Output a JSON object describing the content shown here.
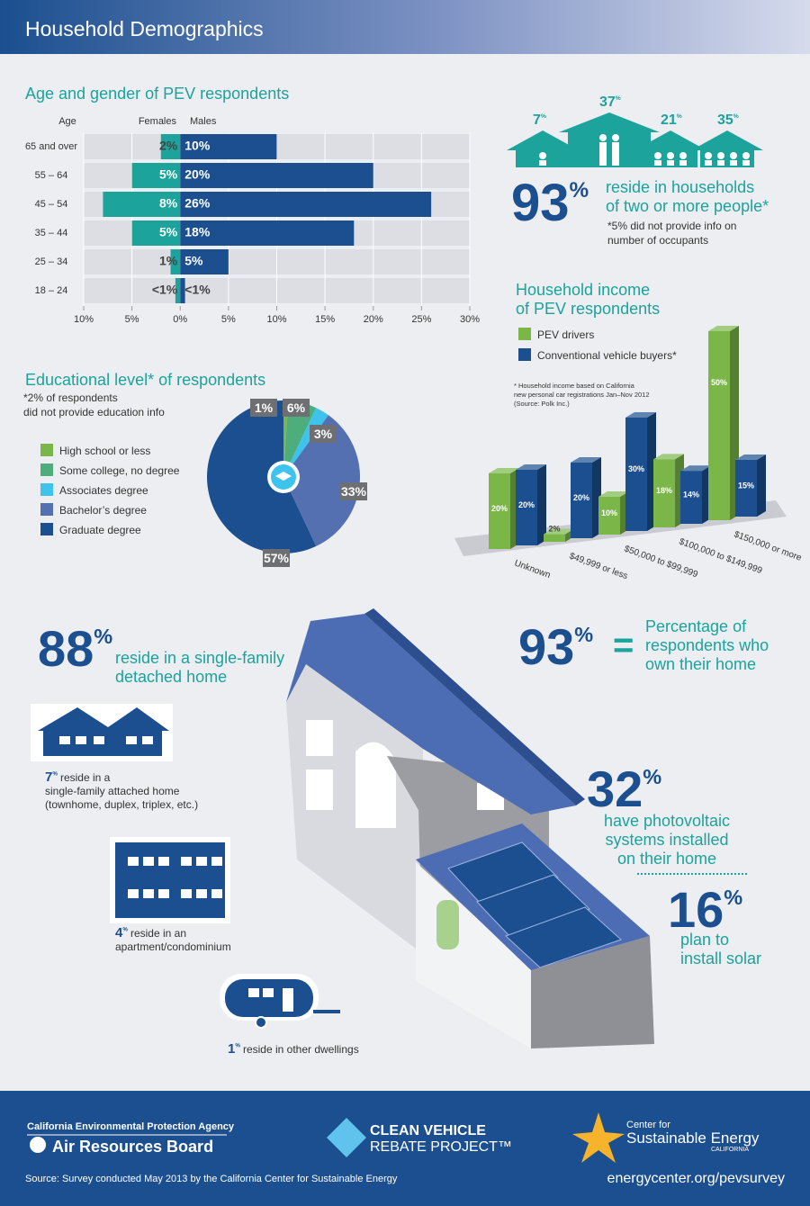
{
  "header": {
    "title": "Household Demographics"
  },
  "chart_data": [
    {
      "type": "hbar-diverging",
      "title": "Age and gender of PEV respondents",
      "axis_label": "Age",
      "categories": [
        "65 and over",
        "55 – 64",
        "45 – 54",
        "35 – 44",
        "25 – 34",
        "18 – 24"
      ],
      "series": [
        {
          "name": "Females",
          "color": "#1ba39c",
          "values": [
            2,
            5,
            8,
            5,
            1,
            0.5
          ],
          "value_labels": [
            "2%",
            "5%",
            "8%",
            "5%",
            "1%",
            "<1%"
          ]
        },
        {
          "name": "Males",
          "color": "#1b4f8f",
          "values": [
            10,
            20,
            26,
            18,
            5,
            0.5
          ],
          "value_labels": [
            "10%",
            "20%",
            "26%",
            "18%",
            "5%",
            "<1%"
          ]
        }
      ],
      "xlim": [
        -10,
        30
      ],
      "xticks": [
        {
          "value": -10,
          "label": "10%"
        },
        {
          "value": -5,
          "label": "5%"
        },
        {
          "value": 0,
          "label": "0%"
        },
        {
          "value": 5,
          "label": "5%"
        },
        {
          "value": 10,
          "label": "10%"
        },
        {
          "value": 15,
          "label": "15%"
        },
        {
          "value": 20,
          "label": "20%"
        },
        {
          "value": 25,
          "label": "25%"
        },
        {
          "value": 30,
          "label": "30%"
        }
      ],
      "grid": true
    },
    {
      "type": "pie",
      "title": "Educational level* of respondents",
      "note": [
        "*2% of respondents",
        "did not provide education info"
      ],
      "categories": [
        "High school or less",
        "Some college, no degree",
        "Associates degree",
        "Bachelor’s degree",
        "Graduate degree"
      ],
      "values": [
        1,
        6,
        3,
        33,
        57
      ],
      "value_labels": [
        "1%",
        "6%",
        "3%",
        "33%",
        "57%"
      ],
      "colors": [
        "#7ab648",
        "#4dad7c",
        "#3ec3ec",
        "#5470b0",
        "#1b4f8f"
      ]
    },
    {
      "type": "bar3d",
      "title": [
        "Household income",
        "of PEV respondents"
      ],
      "note": [
        "* Household income based on California",
        "new personal car registrations Jan–Nov 2012",
        "(Source: Polk Inc.)"
      ],
      "categories": [
        "Unknown",
        "$49,999 or less",
        "$50,000 to $99,999",
        "$100,000 to $149,999",
        "$150,000 or more"
      ],
      "series": [
        {
          "name": "PEV drivers",
          "color": "#7ab648",
          "values": [
            20,
            2,
            10,
            18,
            50
          ],
          "value_labels": [
            "20%",
            "2%",
            "10%",
            "18%",
            "50%"
          ]
        },
        {
          "name": "Conventional vehicle buyers*",
          "color": "#1b4f8f",
          "values": [
            20,
            20,
            30,
            14,
            15
          ],
          "value_labels": [
            "20%",
            "20%",
            "30%",
            "14%",
            "15%"
          ]
        }
      ]
    }
  ],
  "households": {
    "sizes": [
      {
        "value": 7,
        "unit": "%"
      },
      {
        "value": 37,
        "unit": "%"
      },
      {
        "value": 21,
        "unit": "%"
      },
      {
        "value": 35,
        "unit": "%"
      }
    ],
    "total": {
      "value": 93,
      "unit": "%",
      "text": [
        "reside in households",
        "of two or more people*"
      ]
    },
    "note": [
      "*5% did not provide info on",
      "number of occupants"
    ]
  },
  "dwellings": [
    {
      "value": 88,
      "unit": "%",
      "text": [
        "reside in a single-family",
        "detached home"
      ]
    },
    {
      "value": 7,
      "unit": "%",
      "text": [
        "reside in a",
        "single-family attached home",
        "(townhome, duplex, triplex, etc.)"
      ]
    },
    {
      "value": 4,
      "unit": "%",
      "text": [
        "reside in an",
        "apartment/condominium"
      ]
    },
    {
      "value": 1,
      "unit": "%",
      "text": [
        "reside in other dwellings"
      ]
    }
  ],
  "ownership": {
    "value": 93,
    "unit": "%",
    "equals": "=",
    "text": [
      "Percentage of",
      "respondents who",
      "own their home"
    ]
  },
  "solar": {
    "installed": {
      "value": 32,
      "unit": "%",
      "text": [
        "have photovoltaic",
        "systems installed",
        "on their home"
      ]
    },
    "planned": {
      "value": 16,
      "unit": "%",
      "text": [
        "plan to",
        "install solar"
      ]
    }
  },
  "footer": {
    "agency": "California Environmental Protection Agency",
    "board": "Air Resources Board",
    "cvrp": [
      "CLEAN VEHICLE",
      "REBATE PROJECT™"
    ],
    "cse": [
      "Center for",
      "Sustainable Energy",
      "CALIFORNIA"
    ],
    "source": "Source: Survey conducted May 2013 by the California Center for Sustainable Energy",
    "url": "energycenter.org/pevsurvey"
  }
}
